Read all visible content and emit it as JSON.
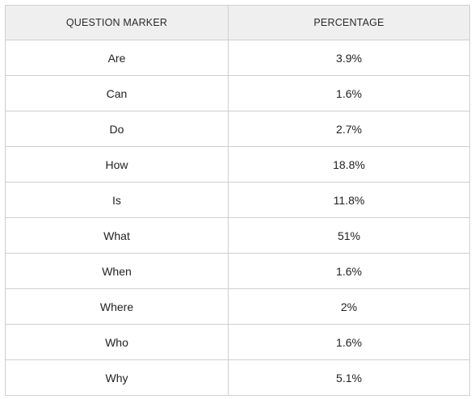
{
  "table": {
    "headers": [
      "QUESTION MARKER",
      "PERCENTAGE"
    ],
    "rows": [
      {
        "marker": "Are",
        "percentage": "3.9%"
      },
      {
        "marker": "Can",
        "percentage": "1.6%"
      },
      {
        "marker": "Do",
        "percentage": "2.7%"
      },
      {
        "marker": "How",
        "percentage": "18.8%"
      },
      {
        "marker": "Is",
        "percentage": "11.8%"
      },
      {
        "marker": "What",
        "percentage": "51%"
      },
      {
        "marker": "When",
        "percentage": "1.6%"
      },
      {
        "marker": "Where",
        "percentage": "2%"
      },
      {
        "marker": "Who",
        "percentage": "1.6%"
      },
      {
        "marker": "Why",
        "percentage": "5.1%"
      }
    ]
  }
}
